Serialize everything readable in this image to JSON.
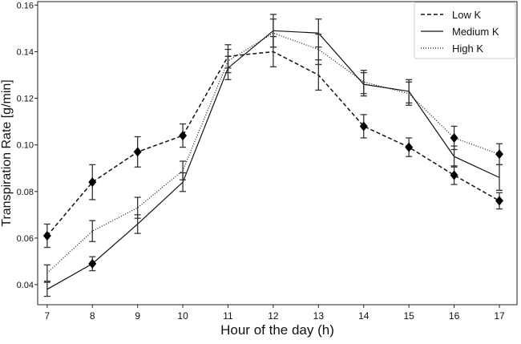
{
  "chart_data": {
    "type": "line",
    "xlabel": "Hour of the day (h)",
    "ylabel": "Transpiration Rate [g/min]",
    "x": [
      7,
      8,
      9,
      10,
      11,
      12,
      13,
      14,
      15,
      16,
      17
    ],
    "xlim": [
      6.79,
      17.39
    ],
    "ylim": [
      0.0314,
      0.1615
    ],
    "xticks": [
      "7",
      "8",
      "9",
      "10",
      "11",
      "12",
      "13",
      "14",
      "15",
      "16",
      "17"
    ],
    "yticks": [
      "0.04",
      "0.06",
      "0.08",
      "0.10",
      "0.12",
      "0.14",
      "0.16"
    ],
    "grid": false,
    "legend": "top-right",
    "series": [
      {
        "name": "Low K",
        "style": "dashed",
        "values": [
          0.061,
          0.084,
          0.097,
          0.104,
          0.138,
          0.14,
          0.13,
          0.108,
          0.099,
          0.087,
          0.076
        ],
        "errors": [
          0.005,
          0.0075,
          0.0065,
          0.005,
          0.005,
          0.0065,
          0.0065,
          0.005,
          0.004,
          0.004,
          0.0035
        ],
        "markers": [
          true,
          true,
          true,
          true,
          false,
          false,
          false,
          true,
          true,
          true,
          true
        ]
      },
      {
        "name": "Medium K",
        "style": "solid",
        "values": [
          0.038,
          0.049,
          0.066,
          0.084,
          0.133,
          0.149,
          0.148,
          0.126,
          0.123,
          0.095,
          0.086
        ],
        "errors": [
          0.003,
          0.003,
          0.004,
          0.004,
          0.005,
          0.007,
          0.006,
          0.005,
          0.005,
          0.0045,
          0.0055
        ],
        "markers": [
          false,
          true,
          false,
          false,
          false,
          false,
          false,
          false,
          false,
          false,
          false
        ]
      },
      {
        "name": "High K",
        "style": "dotted",
        "values": [
          0.045,
          0.063,
          0.073,
          0.089,
          0.136,
          0.148,
          0.141,
          0.127,
          0.122,
          0.103,
          0.096
        ],
        "errors": [
          0.0035,
          0.0045,
          0.0045,
          0.004,
          0.005,
          0.006,
          0.0065,
          0.005,
          0.005,
          0.005,
          0.0045
        ],
        "markers": [
          false,
          false,
          false,
          false,
          false,
          false,
          false,
          false,
          false,
          true,
          true
        ]
      }
    ]
  }
}
